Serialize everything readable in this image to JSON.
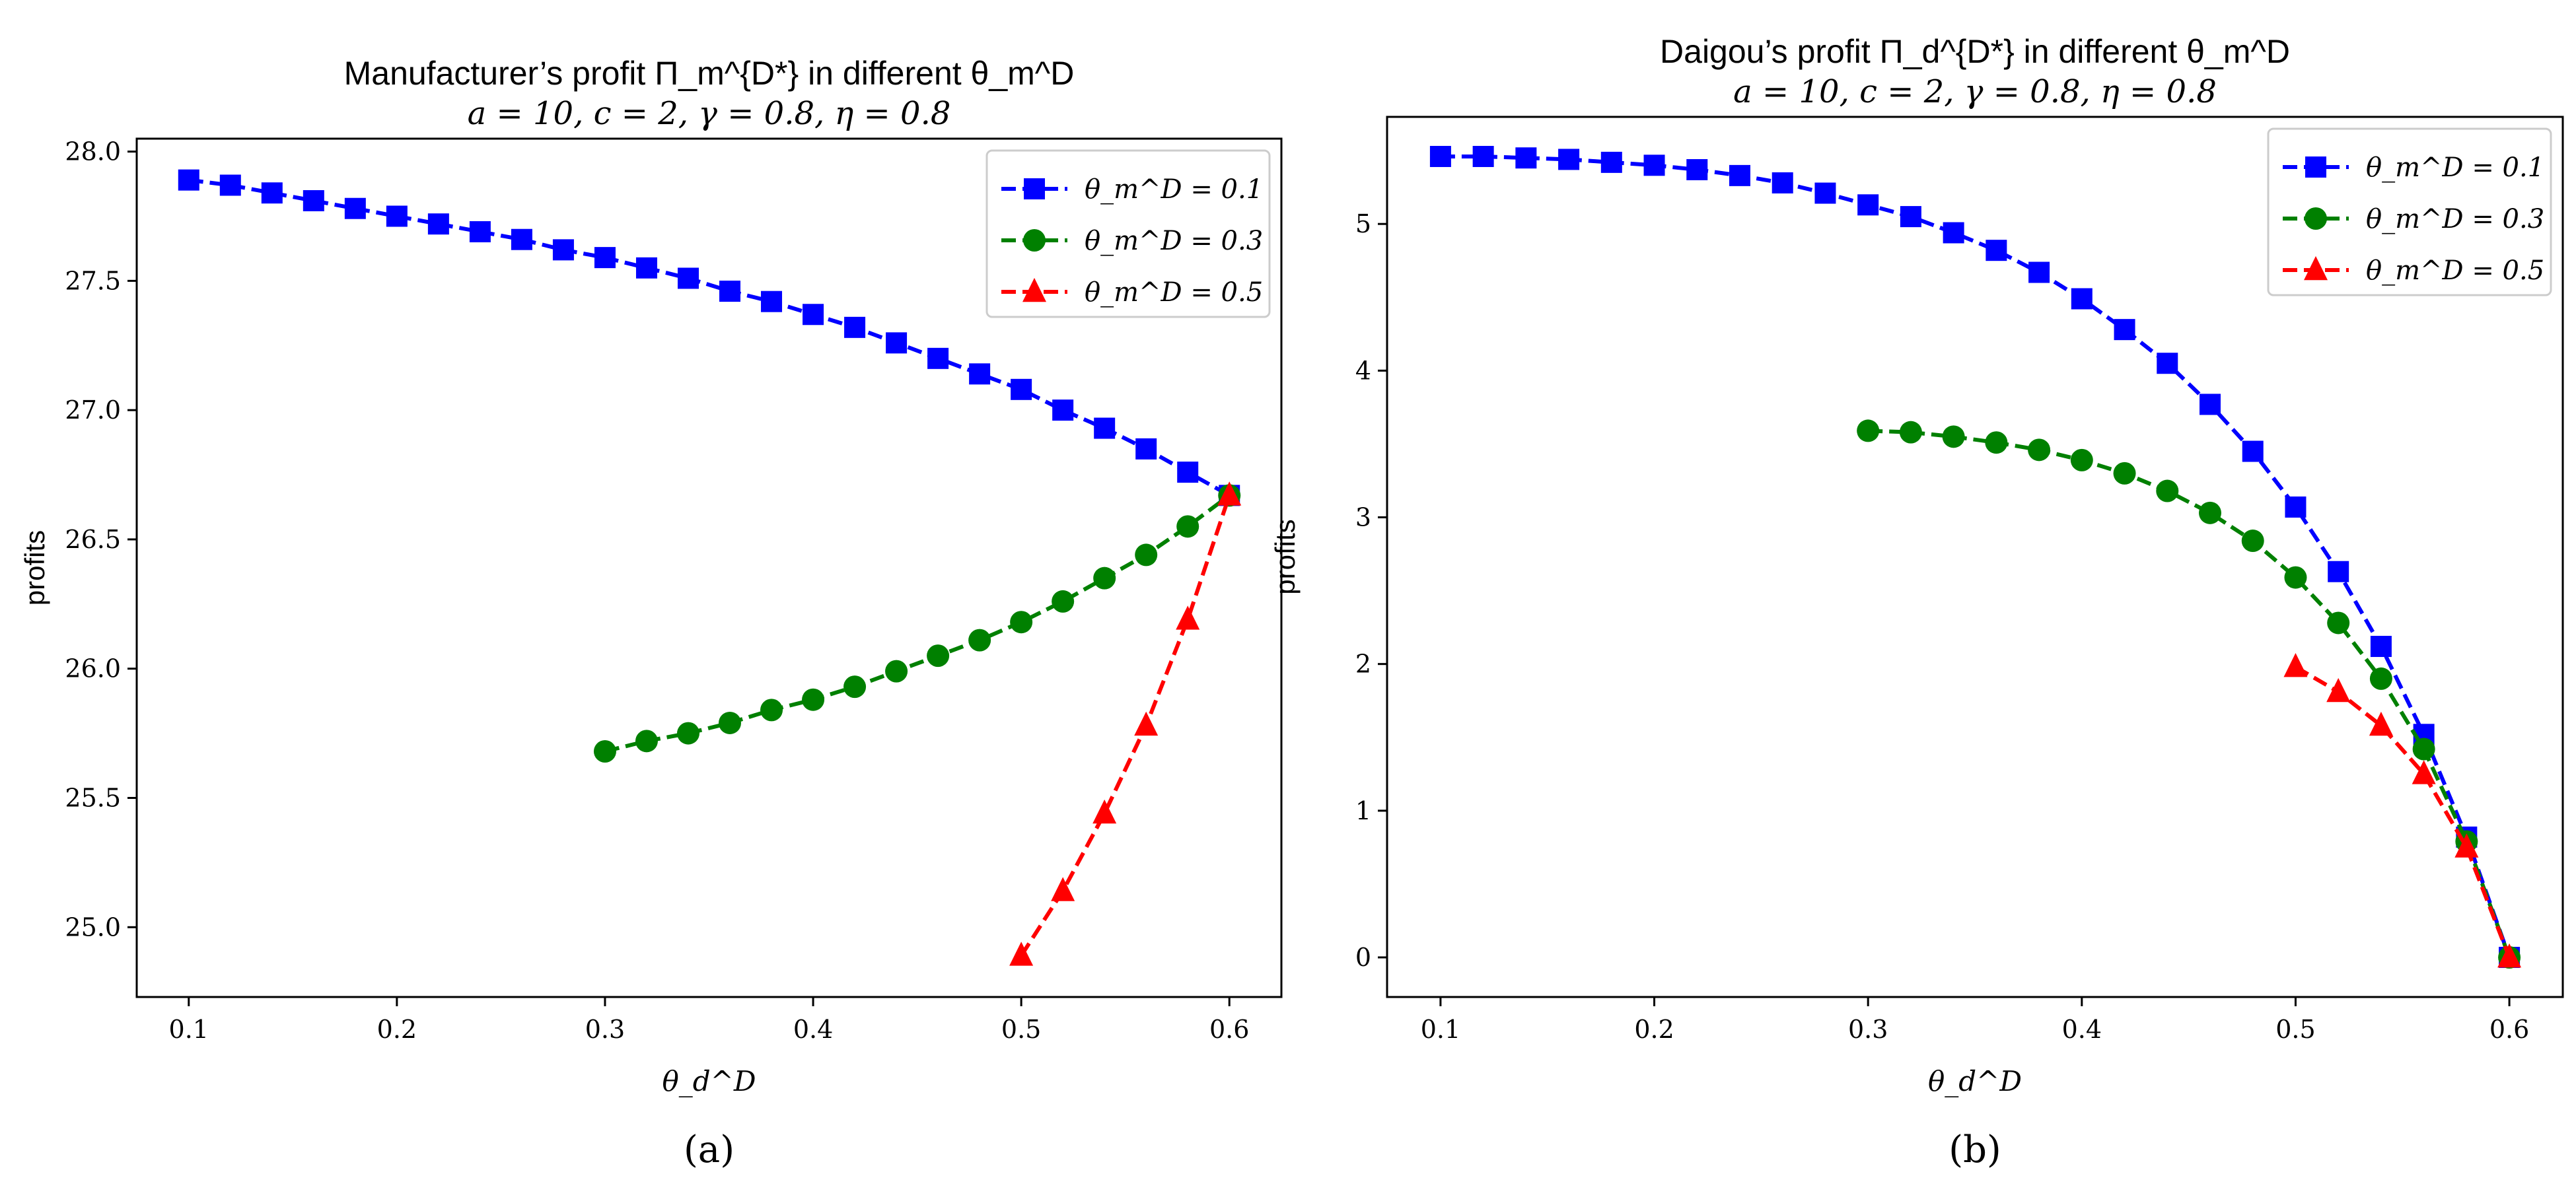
{
  "chart_data": [
    {
      "type": "line",
      "title": "Manufacturer’s profit Π_m^{D*} in different θ_m^D",
      "subtitle": "a = 10, c = 2, γ = 0.8, η = 0.8",
      "xlabel": "θ_d^D",
      "ylabel": "profits",
      "panel_label": "(a)",
      "xlim": [
        0.075,
        0.625
      ],
      "ylim": [
        24.73,
        28.05
      ],
      "xticks": [
        0.1,
        0.2,
        0.3,
        0.4,
        0.5,
        0.6
      ],
      "yticks": [
        25.0,
        25.5,
        26.0,
        26.5,
        27.0,
        27.5,
        28.0
      ],
      "ytick_decimals": 1,
      "grid": false,
      "legend_position": "top-right",
      "series": [
        {
          "name": "θ_m^D = 0.1",
          "color": "#0000ff",
          "marker": "square",
          "x": [
            0.1,
            0.12,
            0.14,
            0.16,
            0.18,
            0.2,
            0.22,
            0.24,
            0.26,
            0.28,
            0.3,
            0.32,
            0.34,
            0.36,
            0.38,
            0.4,
            0.42,
            0.44,
            0.46,
            0.48,
            0.5,
            0.52,
            0.54,
            0.56,
            0.58,
            0.6
          ],
          "y": [
            27.89,
            27.87,
            27.84,
            27.81,
            27.78,
            27.75,
            27.72,
            27.69,
            27.66,
            27.62,
            27.59,
            27.55,
            27.51,
            27.46,
            27.42,
            27.37,
            27.32,
            27.26,
            27.2,
            27.14,
            27.08,
            27.0,
            26.93,
            26.85,
            26.76,
            26.67
          ]
        },
        {
          "name": "θ_m^D = 0.3",
          "color": "#008000",
          "marker": "circle",
          "x": [
            0.3,
            0.32,
            0.34,
            0.36,
            0.38,
            0.4,
            0.42,
            0.44,
            0.46,
            0.48,
            0.5,
            0.52,
            0.54,
            0.56,
            0.58,
            0.6
          ],
          "y": [
            25.68,
            25.72,
            25.75,
            25.79,
            25.84,
            25.88,
            25.93,
            25.99,
            26.05,
            26.11,
            26.18,
            26.26,
            26.35,
            26.44,
            26.55,
            26.67
          ]
        },
        {
          "name": "θ_m^D = 0.5",
          "color": "#ff0000",
          "marker": "triangle",
          "x": [
            0.5,
            0.52,
            0.54,
            0.56,
            0.58,
            0.6
          ],
          "y": [
            24.89,
            25.14,
            25.44,
            25.78,
            26.19,
            26.67
          ]
        }
      ]
    },
    {
      "type": "line",
      "title": "Daigou’s profit Π_d^{D*} in different θ_m^D",
      "subtitle": "a = 10, c = 2, γ = 0.8, η = 0.8",
      "xlabel": "θ_d^D",
      "ylabel": "profits",
      "panel_label": "(b)",
      "xlim": [
        0.075,
        0.625
      ],
      "ylim": [
        -0.27,
        5.73
      ],
      "xticks": [
        0.1,
        0.2,
        0.3,
        0.4,
        0.5,
        0.6
      ],
      "yticks": [
        0,
        1,
        2,
        3,
        4,
        5
      ],
      "ytick_decimals": 0,
      "grid": false,
      "legend_position": "top-right",
      "series": [
        {
          "name": "θ_m^D = 0.1",
          "color": "#0000ff",
          "marker": "square",
          "x": [
            0.1,
            0.12,
            0.14,
            0.16,
            0.18,
            0.2,
            0.22,
            0.24,
            0.26,
            0.28,
            0.3,
            0.32,
            0.34,
            0.36,
            0.38,
            0.4,
            0.42,
            0.44,
            0.46,
            0.48,
            0.5,
            0.52,
            0.54,
            0.56,
            0.58,
            0.6
          ],
          "y": [
            5.46,
            5.46,
            5.45,
            5.44,
            5.42,
            5.4,
            5.37,
            5.33,
            5.28,
            5.21,
            5.13,
            5.05,
            4.94,
            4.82,
            4.67,
            4.49,
            4.28,
            4.05,
            3.77,
            3.45,
            3.07,
            2.63,
            2.12,
            1.52,
            0.82,
            0.0
          ]
        },
        {
          "name": "θ_m^D = 0.3",
          "color": "#008000",
          "marker": "circle",
          "x": [
            0.3,
            0.32,
            0.34,
            0.36,
            0.38,
            0.4,
            0.42,
            0.44,
            0.46,
            0.48,
            0.5,
            0.52,
            0.54,
            0.56,
            0.58,
            0.6
          ],
          "y": [
            3.59,
            3.58,
            3.55,
            3.51,
            3.46,
            3.39,
            3.3,
            3.18,
            3.03,
            2.84,
            2.59,
            2.28,
            1.9,
            1.42,
            0.79,
            0.0
          ]
        },
        {
          "name": "θ_m^D = 0.5",
          "color": "#ff0000",
          "marker": "triangle",
          "x": [
            0.5,
            0.52,
            0.54,
            0.56,
            0.58,
            0.6
          ],
          "y": [
            1.98,
            1.81,
            1.58,
            1.25,
            0.75,
            0.0
          ]
        }
      ]
    }
  ]
}
